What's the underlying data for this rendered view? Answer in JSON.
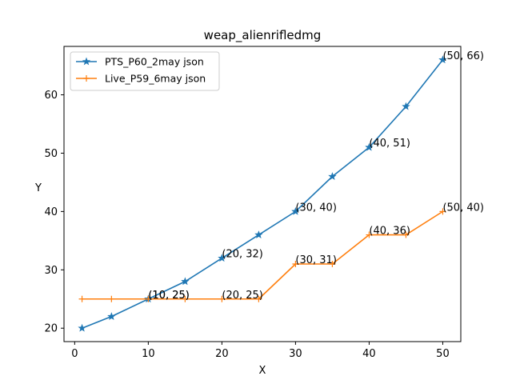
{
  "chart_data": {
    "type": "line",
    "title": "weap_alienrifledmg",
    "xlabel": "X",
    "ylabel": "Y",
    "xlim": [
      -1.45,
      52.45
    ],
    "ylim": [
      17.7,
      68.3
    ],
    "xticks": [
      0,
      10,
      20,
      30,
      40,
      50
    ],
    "yticks": [
      20,
      30,
      40,
      50,
      60
    ],
    "grid": false,
    "legend_position": "upper-left",
    "series": [
      {
        "name": "PTS_P60_2may json",
        "color": "#1f77b4",
        "marker": "star",
        "x": [
          1,
          5,
          10,
          15,
          20,
          25,
          30,
          35,
          40,
          45,
          50
        ],
        "y": [
          20,
          22,
          25,
          28,
          32,
          36,
          40,
          46,
          51,
          58,
          66
        ]
      },
      {
        "name": "Live_P59_6may json",
        "color": "#ff7f0e",
        "marker": "plus",
        "x": [
          1,
          5,
          10,
          15,
          20,
          25,
          30,
          35,
          40,
          45,
          50
        ],
        "y": [
          25,
          25,
          25,
          25,
          25,
          25,
          31,
          31,
          36,
          36,
          40
        ]
      }
    ],
    "annotations": [
      {
        "x": 10,
        "y": 25,
        "text": "(10, 25)"
      },
      {
        "x": 20,
        "y": 32,
        "text": "(20, 32)"
      },
      {
        "x": 30,
        "y": 40,
        "text": "(30, 40)"
      },
      {
        "x": 40,
        "y": 51,
        "text": "(40, 51)"
      },
      {
        "x": 50,
        "y": 66,
        "text": "(50, 66)"
      },
      {
        "x": 10,
        "y": 25,
        "text": "(10, 25)"
      },
      {
        "x": 20,
        "y": 25,
        "text": "(20, 25)"
      },
      {
        "x": 30,
        "y": 31,
        "text": "(30, 31)"
      },
      {
        "x": 40,
        "y": 36,
        "text": "(40, 36)"
      },
      {
        "x": 50,
        "y": 40,
        "text": "(50, 40)"
      }
    ]
  }
}
